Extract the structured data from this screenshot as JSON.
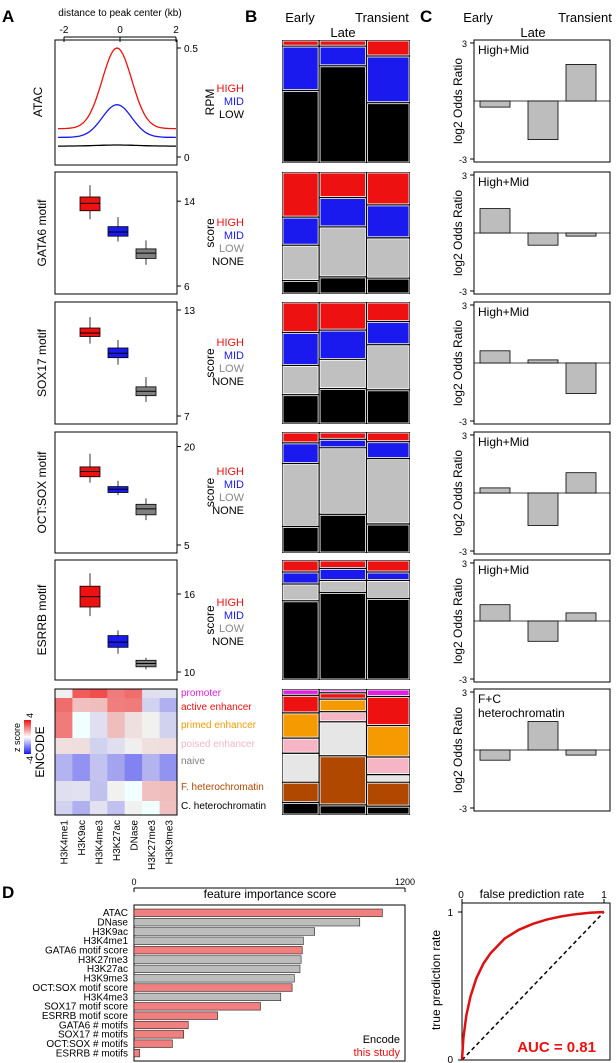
{
  "panel_labels": {
    "a": "A",
    "b": "B",
    "c": "C",
    "d": "D"
  },
  "panel_a": {
    "top_axis_label": "distance to peak center (kb)",
    "top_ticks": [
      "-2",
      "0",
      "2"
    ],
    "atac": {
      "row_label": "ATAC",
      "ylabel": "RPM",
      "ticks": [
        "0.5",
        "0"
      ]
    },
    "boxplots": [
      {
        "row_label": "GATA6 motif",
        "ylabel": "score",
        "ticks": [
          "14",
          "6"
        ]
      },
      {
        "row_label": "SOX17 motif",
        "ylabel": "score",
        "ticks": [
          "13",
          "7"
        ]
      },
      {
        "row_label": "OCT:SOX motif",
        "ylabel": "score",
        "ticks": [
          "20",
          "5"
        ]
      },
      {
        "row_label": "ESRRB motif",
        "ylabel": "score",
        "ticks": [
          "16",
          "10"
        ]
      }
    ],
    "encode": {
      "row_label": "ENCODE",
      "zscore_label": "z score",
      "zmax": "4",
      "zmin": "-4",
      "columns": [
        "H3K4me1",
        "H3K9ac",
        "H3K4me3",
        "H3K27ac",
        "DNase",
        "H3K27me3",
        "H3K9me3"
      ],
      "states": [
        {
          "label": "promoter",
          "color": "#e020e0"
        },
        {
          "label": "active enhancer",
          "color": "#ee1111"
        },
        {
          "label": "primed enhancer",
          "color": "#f59a00"
        },
        {
          "label": "poised enhancer",
          "color": "#f5b5c5"
        },
        {
          "label": "naive",
          "color": "#999999"
        },
        {
          "label": "F. heterochromatin",
          "color": "#b04800"
        },
        {
          "label": "C. heterochromatin",
          "color": "#000000"
        }
      ]
    }
  },
  "panel_b": {
    "headers": {
      "early": "Early",
      "transient": "Transient",
      "late": "Late"
    },
    "level_labels_atac": [
      "HIGH",
      "MID",
      "LOW"
    ],
    "level_labels": [
      "HIGH",
      "MID",
      "LOW",
      "NONE"
    ]
  },
  "panel_c": {
    "headers": {
      "early": "Early",
      "transient": "Transient",
      "late": "Late"
    },
    "ylabel": "log2 Odds Ratio",
    "tick_top": "3",
    "tick_bottom": "-3",
    "legends": [
      "High+Mid",
      "High+Mid",
      "High+Mid",
      "High+Mid",
      "High+Mid",
      "F+C heterochromatin"
    ]
  },
  "panel_d": {
    "title": "feature importance score",
    "x_ticks": [
      "0",
      "1200"
    ],
    "legend": {
      "encode": "Encode",
      "study": "this study"
    },
    "roc": {
      "title": "false prediction rate",
      "ylabel": "true prediction rate",
      "tick_one_x": "1",
      "tick_one_y": "1",
      "tick_zero": "0",
      "auc": "AUC = 0.81"
    }
  },
  "chart_data": [
    {
      "type": "line",
      "title": "ATAC",
      "xlabel": "distance to peak center (kb)",
      "ylabel": "RPM",
      "xlim": [
        -2.6,
        2.6
      ],
      "ylim": [
        0,
        0.55
      ],
      "series": [
        {
          "name": "HIGH",
          "color": "#ee1111",
          "peak": 0.5,
          "base": 0.13,
          "sigma": 0.65
        },
        {
          "name": "MID",
          "color": "#1a1aee",
          "peak": 0.24,
          "base": 0.09,
          "sigma": 0.65
        },
        {
          "name": "LOW",
          "color": "#000000",
          "peak": 0.055,
          "base": 0.05,
          "sigma": 0.9
        }
      ]
    },
    {
      "type": "box",
      "title": "GATA6 motif",
      "ylabel": "score",
      "ylim": [
        6,
        16
      ],
      "boxes": [
        {
          "group": "HIGH",
          "color": "#ee1111",
          "whisker_low": 12.3,
          "q1": 13.1,
          "median": 13.8,
          "q3": 14.4,
          "whisker_high": 15.5
        },
        {
          "group": "MID",
          "color": "#1a1aee",
          "whisker_low": 10.2,
          "q1": 10.7,
          "median": 11.1,
          "q3": 11.6,
          "whisker_high": 12.5
        },
        {
          "group": "LOW",
          "color": "#808080",
          "whisker_low": 8.0,
          "q1": 8.6,
          "median": 9.1,
          "q3": 9.5,
          "whisker_high": 10.3
        }
      ]
    },
    {
      "type": "box",
      "title": "SOX17 motif",
      "ylabel": "score",
      "ylim": [
        7,
        13
      ],
      "boxes": [
        {
          "group": "HIGH",
          "color": "#ee1111",
          "whisker_low": 11.1,
          "q1": 11.5,
          "median": 11.7,
          "q3": 11.98,
          "whisker_high": 12.6
        },
        {
          "group": "MID",
          "color": "#1a1aee",
          "whisker_low": 9.9,
          "q1": 10.3,
          "median": 10.55,
          "q3": 10.85,
          "whisker_high": 11.3
        },
        {
          "group": "LOW",
          "color": "#808080",
          "whisker_low": 7.8,
          "q1": 8.15,
          "median": 8.4,
          "q3": 8.65,
          "whisker_high": 9.2
        }
      ]
    },
    {
      "type": "box",
      "title": "OCT:SOX motif",
      "ylabel": "score",
      "ylim": [
        5,
        21
      ],
      "boxes": [
        {
          "group": "HIGH",
          "color": "#ee1111",
          "whisker_low": 14.5,
          "q1": 15.4,
          "median": 16.2,
          "q3": 16.9,
          "whisker_high": 18.9
        },
        {
          "group": "MID",
          "color": "#1a1aee",
          "whisker_low": 12.6,
          "q1": 13.0,
          "median": 13.5,
          "q3": 13.9,
          "whisker_high": 14.8
        },
        {
          "group": "LOW",
          "color": "#808080",
          "whisker_low": 8.8,
          "q1": 9.6,
          "median": 10.5,
          "q3": 11.2,
          "whisker_high": 12.1
        }
      ]
    },
    {
      "type": "box",
      "title": "ESRRB motif",
      "ylabel": "score",
      "ylim": [
        10,
        18
      ],
      "boxes": [
        {
          "group": "HIGH",
          "color": "#ee1111",
          "whisker_low": 14.3,
          "q1": 15.0,
          "median": 15.8,
          "q3": 16.6,
          "whisker_high": 17.6
        },
        {
          "group": "MID",
          "color": "#1a1aee",
          "whisker_low": 11.4,
          "q1": 11.9,
          "median": 12.3,
          "q3": 12.8,
          "whisker_high": 13.2
        },
        {
          "group": "LOW",
          "color": "#808080",
          "whisker_low": 10.2,
          "q1": 10.4,
          "median": 10.65,
          "q3": 10.9,
          "whisker_high": 11.1
        }
      ]
    },
    {
      "type": "heatmap",
      "title": "ENCODE",
      "columns": [
        "H3K4me1",
        "H3K9ac",
        "H3K4me3",
        "H3K27ac",
        "DNase",
        "H3K27me3",
        "H3K9me3"
      ],
      "states": [
        "promoter",
        "active enhancer",
        "primed enhancer",
        "poised enhancer",
        "naive",
        "F. heterochromatin",
        "C. heterochromatin"
      ],
      "values": [
        [
          1,
          3,
          4,
          2,
          3,
          0,
          -1
        ],
        [
          3,
          2,
          1,
          3,
          2,
          -1,
          -1
        ],
        [
          2,
          0,
          0,
          1,
          1,
          -1,
          -1
        ],
        [
          1,
          0,
          -1,
          0,
          0,
          1,
          0
        ],
        [
          -2,
          -2,
          -2,
          -2,
          -2,
          -2,
          -2
        ],
        [
          0,
          -1,
          -1,
          -1,
          0,
          2,
          1
        ],
        [
          -1,
          -1,
          -1,
          -1,
          -1,
          0,
          2
        ]
      ],
      "zlim": [
        -4,
        4
      ]
    },
    {
      "type": "bar",
      "title": "ATAC",
      "categories": [
        "Early",
        "Late",
        "Transient"
      ],
      "stack_order": [
        "HIGH",
        "MID",
        "LOW"
      ],
      "colors": {
        "HIGH": "#ee1111",
        "MID": "#1a1aee",
        "LOW": "#000000"
      },
      "widths": [
        0.29,
        0.37,
        0.34
      ],
      "values": [
        [
          0.05,
          0.36,
          0.59
        ],
        [
          0.05,
          0.16,
          0.79
        ],
        [
          0.13,
          0.38,
          0.49
        ]
      ]
    },
    {
      "type": "bar",
      "title": "GATA6 motif",
      "categories": [
        "Early",
        "Late",
        "Transient"
      ],
      "stack_order": [
        "HIGH",
        "MID",
        "LOW",
        "NONE"
      ],
      "colors": {
        "HIGH": "#ee1111",
        "MID": "#1a1aee",
        "LOW": "#c0c0c0",
        "NONE": "#000000"
      },
      "widths": [
        0.29,
        0.37,
        0.34
      ],
      "values": [
        [
          0.37,
          0.23,
          0.29,
          0.11
        ],
        [
          0.21,
          0.24,
          0.41,
          0.14
        ],
        [
          0.27,
          0.27,
          0.33,
          0.13
        ]
      ]
    },
    {
      "type": "bar",
      "title": "SOX17 motif",
      "categories": [
        "Early",
        "Late",
        "Transient"
      ],
      "stack_order": [
        "HIGH",
        "MID",
        "LOW",
        "NONE"
      ],
      "colors": {
        "HIGH": "#ee1111",
        "MID": "#1a1aee",
        "LOW": "#c0c0c0",
        "NONE": "#000000"
      },
      "widths": [
        0.29,
        0.37,
        0.34
      ],
      "values": [
        [
          0.25,
          0.27,
          0.24,
          0.24
        ],
        [
          0.23,
          0.24,
          0.24,
          0.29
        ],
        [
          0.16,
          0.19,
          0.37,
          0.28
        ]
      ]
    },
    {
      "type": "bar",
      "title": "OCT:SOX motif",
      "categories": [
        "Early",
        "Late",
        "Transient"
      ],
      "stack_order": [
        "HIGH",
        "MID",
        "LOW",
        "NONE"
      ],
      "colors": {
        "HIGH": "#ee1111",
        "MID": "#1a1aee",
        "LOW": "#c0c0c0",
        "NONE": "#000000"
      },
      "widths": [
        0.29,
        0.37,
        0.34
      ],
      "values": [
        [
          0.09,
          0.17,
          0.52,
          0.22
        ],
        [
          0.06,
          0.07,
          0.55,
          0.32
        ],
        [
          0.08,
          0.14,
          0.54,
          0.24
        ]
      ]
    },
    {
      "type": "bar",
      "title": "ESRRB motif",
      "categories": [
        "Early",
        "Late",
        "Transient"
      ],
      "stack_order": [
        "HIGH",
        "MID",
        "LOW",
        "NONE"
      ],
      "colors": {
        "HIGH": "#ee1111",
        "MID": "#1a1aee",
        "LOW": "#c0c0c0",
        "NONE": "#000000"
      },
      "widths": [
        0.29,
        0.37,
        0.34
      ],
      "values": [
        [
          0.1,
          0.1,
          0.14,
          0.66
        ],
        [
          0.07,
          0.1,
          0.1,
          0.73
        ],
        [
          0.1,
          0.07,
          0.15,
          0.68
        ]
      ]
    },
    {
      "type": "bar",
      "title": "ENCODE",
      "categories": [
        "Early",
        "Late",
        "Transient"
      ],
      "stack_order": [
        "promoter",
        "active enhancer",
        "primed enhancer",
        "poised enhancer",
        "naive",
        "F. heterochromatin",
        "C. heterochromatin"
      ],
      "colors": {
        "promoter": "#e020e0",
        "active enhancer": "#ee1111",
        "primed enhancer": "#f59a00",
        "poised enhancer": "#f5b5c5",
        "naive": "#e6e6e6",
        "F. heterochromatin": "#b04800",
        "C. heterochromatin": "#000000"
      },
      "widths": [
        0.29,
        0.37,
        0.34
      ],
      "values": [
        [
          0.05,
          0.14,
          0.2,
          0.12,
          0.23,
          0.16,
          0.1
        ],
        [
          0.03,
          0.05,
          0.1,
          0.08,
          0.27,
          0.39,
          0.08
        ],
        [
          0.06,
          0.23,
          0.25,
          0.14,
          0.06,
          0.19,
          0.07
        ]
      ]
    },
    {
      "type": "bar",
      "title": "log2 Odds Ratio",
      "panels": [
        {
          "legend": "High+Mid",
          "ylim": [
            -3,
            3
          ],
          "categories": [
            "Early",
            "Late",
            "Transient"
          ],
          "values": [
            -0.3,
            -1.9,
            1.8
          ]
        },
        {
          "legend": "High+Mid",
          "ylim": [
            -3,
            3
          ],
          "categories": [
            "Early",
            "Late",
            "Transient"
          ],
          "values": [
            1.2,
            -0.6,
            -0.15
          ]
        },
        {
          "legend": "High+Mid",
          "ylim": [
            -3,
            3
          ],
          "categories": [
            "Early",
            "Late",
            "Transient"
          ],
          "values": [
            0.6,
            0.15,
            -1.5
          ]
        },
        {
          "legend": "High+Mid",
          "ylim": [
            -3,
            3
          ],
          "categories": [
            "Early",
            "Late",
            "Transient"
          ],
          "values": [
            0.25,
            -1.6,
            1.0
          ]
        },
        {
          "legend": "High+Mid",
          "ylim": [
            -3,
            3
          ],
          "categories": [
            "Early",
            "Late",
            "Transient"
          ],
          "values": [
            0.8,
            -1.0,
            0.4
          ]
        },
        {
          "legend": "F+C heterochromatin",
          "ylim": [
            -3,
            3
          ],
          "categories": [
            "Early",
            "Late",
            "Transient"
          ],
          "values": [
            -0.5,
            1.4,
            -0.25
          ]
        }
      ]
    },
    {
      "type": "bar",
      "title": "feature importance score",
      "orientation": "horizontal",
      "xlim": [
        0,
        1200
      ],
      "categories": [
        "ATAC",
        "DNase",
        "H3K9ac",
        "H3K4me1",
        "GATA6 motif score",
        "H3K27me3",
        "H3K27ac",
        "H3K9me3",
        "OCT:SOX motif score",
        "H3K4me3",
        "SOX17 motif score",
        "ESRRB motif score",
        "GATA6 # motifs",
        "SOX17 # motifs",
        "OCT:SOX # motifs",
        "ESRRB # motifs"
      ],
      "values": [
        1100,
        1000,
        800,
        750,
        745,
        740,
        735,
        710,
        700,
        650,
        560,
        370,
        240,
        220,
        170,
        25
      ],
      "source": [
        "this study",
        "Encode",
        "Encode",
        "Encode",
        "this study",
        "Encode",
        "Encode",
        "Encode",
        "this study",
        "Encode",
        "this study",
        "this study",
        "this study",
        "this study",
        "this study",
        "this study"
      ],
      "colors": {
        "Encode": "#bdbdbd",
        "this study": "#f08080"
      }
    },
    {
      "type": "line",
      "title": "false prediction rate",
      "xlabel": "false prediction rate",
      "ylabel": "true prediction rate",
      "xlim": [
        0,
        1
      ],
      "ylim": [
        0,
        1
      ],
      "series": [
        {
          "name": "AUC = 0.81",
          "color": "#dd1111",
          "x": [
            0,
            0.01,
            0.03,
            0.06,
            0.1,
            0.15,
            0.2,
            0.3,
            0.4,
            0.5,
            0.6,
            0.7,
            0.8,
            0.9,
            1.0
          ],
          "y": [
            0,
            0.15,
            0.3,
            0.43,
            0.55,
            0.65,
            0.72,
            0.82,
            0.88,
            0.92,
            0.95,
            0.97,
            0.985,
            0.995,
            1.0
          ]
        }
      ],
      "reference_diagonal": true
    }
  ]
}
